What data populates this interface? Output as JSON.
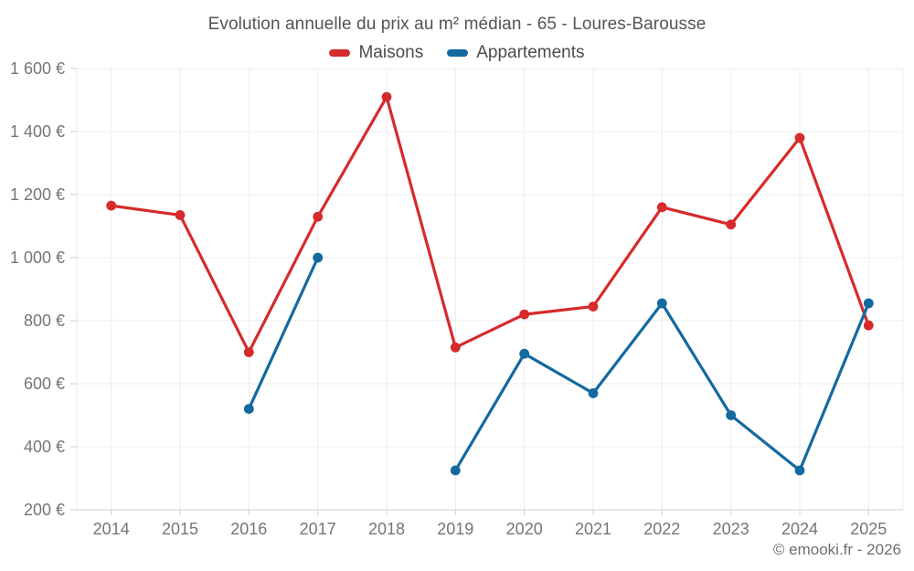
{
  "footer": "© emooki.fr - 2026",
  "colors": {
    "background": "#ffffff",
    "grid": "#ededed",
    "axis_line": "#d0d0d0",
    "tick": "#cccccc",
    "title_text": "#545454",
    "axis_label_text": "#757575",
    "legend_text": "#4c4c4c",
    "footer_text": "#6e6e6e",
    "maisons": "#d62b2b",
    "appartements": "#14699f"
  },
  "chart_data": {
    "type": "line",
    "title": "Evolution annuelle du prix au m² médian - 65 - Loures-Barousse",
    "categories": [
      "2014",
      "2015",
      "2016",
      "2017",
      "2018",
      "2019",
      "2020",
      "2021",
      "2022",
      "2023",
      "2024",
      "2025"
    ],
    "series": [
      {
        "name": "Maisons",
        "color": "#d62b2b",
        "values": [
          1165,
          1135,
          700,
          1130,
          1510,
          715,
          820,
          845,
          1160,
          1105,
          1380,
          785
        ]
      },
      {
        "name": "Appartements",
        "color": "#14699f",
        "values": [
          null,
          null,
          520,
          1000,
          null,
          325,
          695,
          570,
          855,
          500,
          325,
          855
        ]
      }
    ],
    "xlabel": "",
    "ylabel": "",
    "ylim": [
      200,
      1600
    ],
    "y_tick_step": 200,
    "y_tick_labels": [
      "200 €",
      "400 €",
      "600 €",
      "800 €",
      "1 000 €",
      "1 200 €",
      "1 400 €",
      "1 600 €"
    ],
    "grid": true,
    "legend_position": "top",
    "missing_data_note": "Appartements has no points for 2014, 2015 and 2018 (line gap)"
  }
}
